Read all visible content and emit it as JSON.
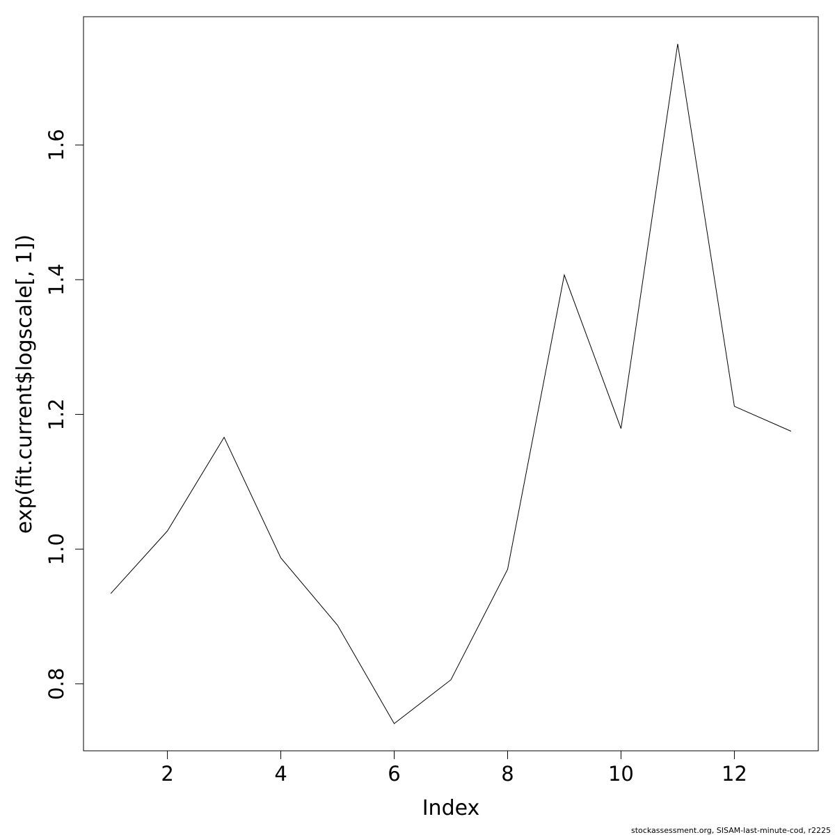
{
  "chart_data": {
    "type": "line",
    "x_label": "Index",
    "y_label": "exp(fit.current$logscale[, 1])",
    "footer": "stockassessment.org, SISAM-last-minute-cod, r2225",
    "x": [
      1,
      2,
      3,
      4,
      5,
      6,
      7,
      8,
      9,
      10,
      11,
      12,
      13
    ],
    "values": [
      0.934,
      1.027,
      1.166,
      0.987,
      0.887,
      0.741,
      0.806,
      0.97,
      1.407,
      1.179,
      1.75,
      1.212,
      1.175
    ],
    "color": "#000000",
    "xlim": [
      0.52,
      13.48
    ],
    "ylim": [
      0.7006,
      1.7904
    ],
    "xticks": [
      2,
      4,
      6,
      8,
      10,
      12
    ],
    "yticks": [
      0.8,
      {
        "value": 1,
        "label": "1.0"
      },
      1.2,
      1.4,
      1.6
    ]
  }
}
